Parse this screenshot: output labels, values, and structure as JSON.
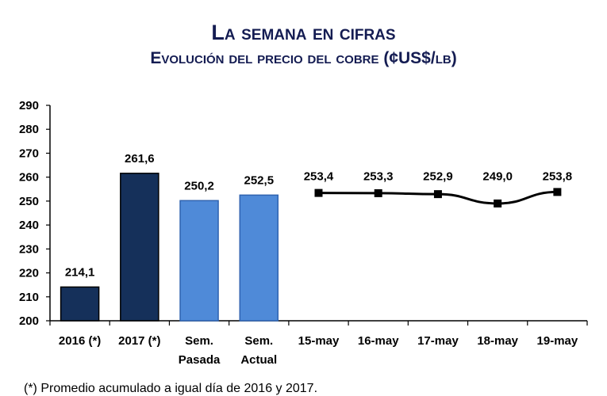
{
  "chart_data": {
    "type": "bar",
    "title": "La semana en cifras",
    "subtitle": "Evolución del precio del cobre  (¢US$/lb)",
    "categories": [
      "2016 (*)",
      "2017 (*)",
      "Sem.\nPasada",
      "Sem.\nActual",
      "15-may",
      "16-may",
      "17-may",
      "18-may",
      "19-may"
    ],
    "bars": [
      {
        "category": "2016 (*)",
        "value": 214.1,
        "label": "214,1",
        "color": "#15305a"
      },
      {
        "category": "2017 (*)",
        "value": 261.6,
        "label": "261,6",
        "color": "#15305a"
      },
      {
        "category": "Sem. Pasada",
        "value": 250.2,
        "label": "250,2",
        "color": "#4f8ad8"
      },
      {
        "category": "Sem. Actual",
        "value": 252.5,
        "label": "252,5",
        "color": "#4f8ad8"
      }
    ],
    "line": {
      "color": "#000000",
      "points": [
        {
          "x": "15-may",
          "y": 253.4,
          "label": "253,4"
        },
        {
          "x": "16-may",
          "y": 253.3,
          "label": "253,3"
        },
        {
          "x": "17-may",
          "y": 252.9,
          "label": "252,9"
        },
        {
          "x": "18-may",
          "y": 249.0,
          "label": "249,0"
        },
        {
          "x": "19-may",
          "y": 253.8,
          "label": "253,8"
        }
      ]
    },
    "ylim": [
      200,
      290
    ],
    "yticks": [
      200,
      210,
      220,
      230,
      240,
      250,
      260,
      270,
      280,
      290
    ],
    "grid": false
  },
  "footnote": "(*) Promedio acumulado a igual día de 2016 y 2017."
}
